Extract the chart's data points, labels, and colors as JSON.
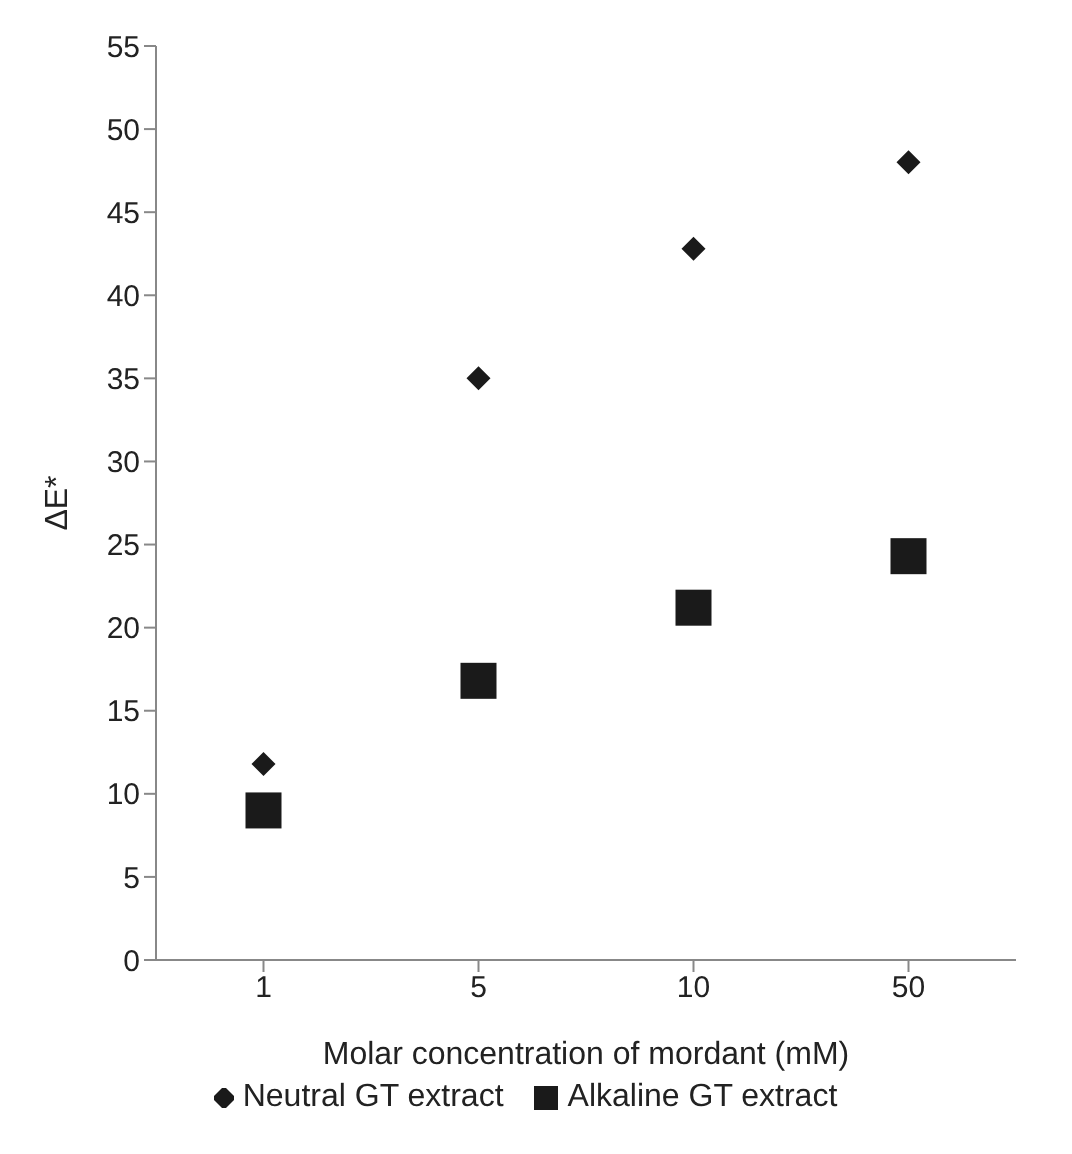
{
  "chart_data": {
    "type": "scatter",
    "xlabel": "Molar concentration of mordant (mM)",
    "ylabel": "ΔE*",
    "categories": [
      "1",
      "5",
      "10",
      "50"
    ],
    "series": [
      {
        "name": "Neutral GT extract",
        "color": "#1a1a1a",
        "marker": "diamond",
        "values": [
          11.8,
          35,
          42.8,
          48
        ]
      },
      {
        "name": "Alkaline GT extract",
        "color": "#1a1a1a",
        "marker": "square",
        "values": [
          9,
          16.8,
          21.2,
          24.3
        ]
      }
    ],
    "ylim": [
      0,
      55
    ],
    "yticks": [
      0,
      5,
      10,
      15,
      20,
      25,
      30,
      35,
      40,
      45,
      50,
      55
    ],
    "legend": "bottom"
  }
}
